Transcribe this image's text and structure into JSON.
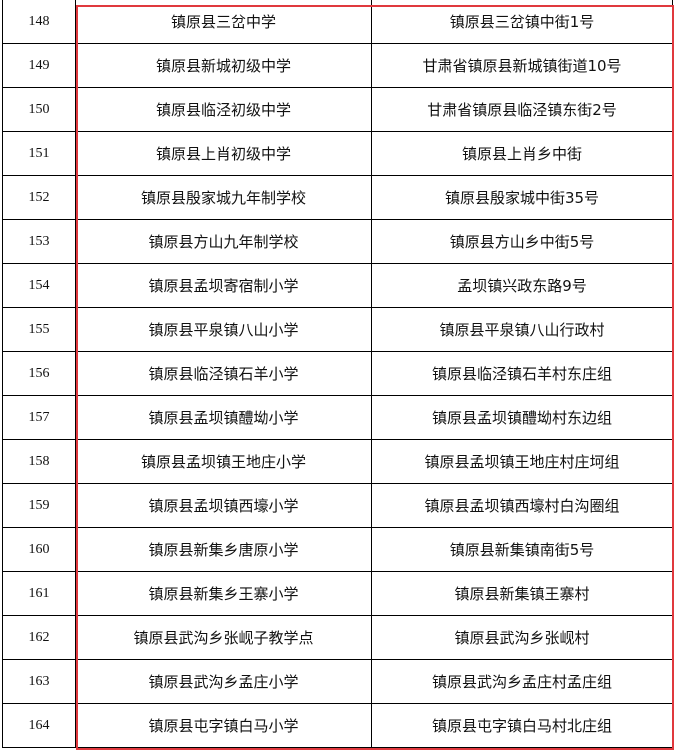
{
  "rows": [
    {
      "no": "148",
      "name": "镇原县三岔中学",
      "address": "镇原县三岔镇中街1号"
    },
    {
      "no": "149",
      "name": "镇原县新城初级中学",
      "address": "甘肃省镇原县新城镇街道10号"
    },
    {
      "no": "150",
      "name": "镇原县临泾初级中学",
      "address": "甘肃省镇原县临泾镇东街2号"
    },
    {
      "no": "151",
      "name": "镇原县上肖初级中学",
      "address": "镇原县上肖乡中街"
    },
    {
      "no": "152",
      "name": "镇原县殷家城九年制学校",
      "address": "镇原县殷家城中街35号"
    },
    {
      "no": "153",
      "name": "镇原县方山九年制学校",
      "address": "镇原县方山乡中街5号"
    },
    {
      "no": "154",
      "name": "镇原县孟坝寄宿制小学",
      "address": "孟坝镇兴政东路9号"
    },
    {
      "no": "155",
      "name": "镇原县平泉镇八山小学",
      "address": "镇原县平泉镇八山行政村"
    },
    {
      "no": "156",
      "name": "镇原县临泾镇石羊小学",
      "address": "镇原县临泾镇石羊村东庄组"
    },
    {
      "no": "157",
      "name": "镇原县孟坝镇醴坳小学",
      "address": "镇原县孟坝镇醴坳村东边组"
    },
    {
      "no": "158",
      "name": "镇原县孟坝镇王地庄小学",
      "address": "镇原县孟坝镇王地庄村庄坷组"
    },
    {
      "no": "159",
      "name": "镇原县孟坝镇西壕小学",
      "address": "镇原县孟坝镇西壕村白沟圈组"
    },
    {
      "no": "160",
      "name": "镇原县新集乡唐原小学",
      "address": "镇原县新集镇南街5号"
    },
    {
      "no": "161",
      "name": "镇原县新集乡王寨小学",
      "address": "镇原县新集镇王寨村"
    },
    {
      "no": "162",
      "name": "镇原县武沟乡张岘子教学点",
      "address": "镇原县武沟乡张岘村"
    },
    {
      "no": "163",
      "name": "镇原县武沟乡孟庄小学",
      "address": "镇原县武沟乡孟庄村孟庄组"
    },
    {
      "no": "164",
      "name": "镇原县屯字镇白马小学",
      "address": "镇原县屯字镇白马村北庄组"
    }
  ],
  "highlight_color": "#e0393e"
}
